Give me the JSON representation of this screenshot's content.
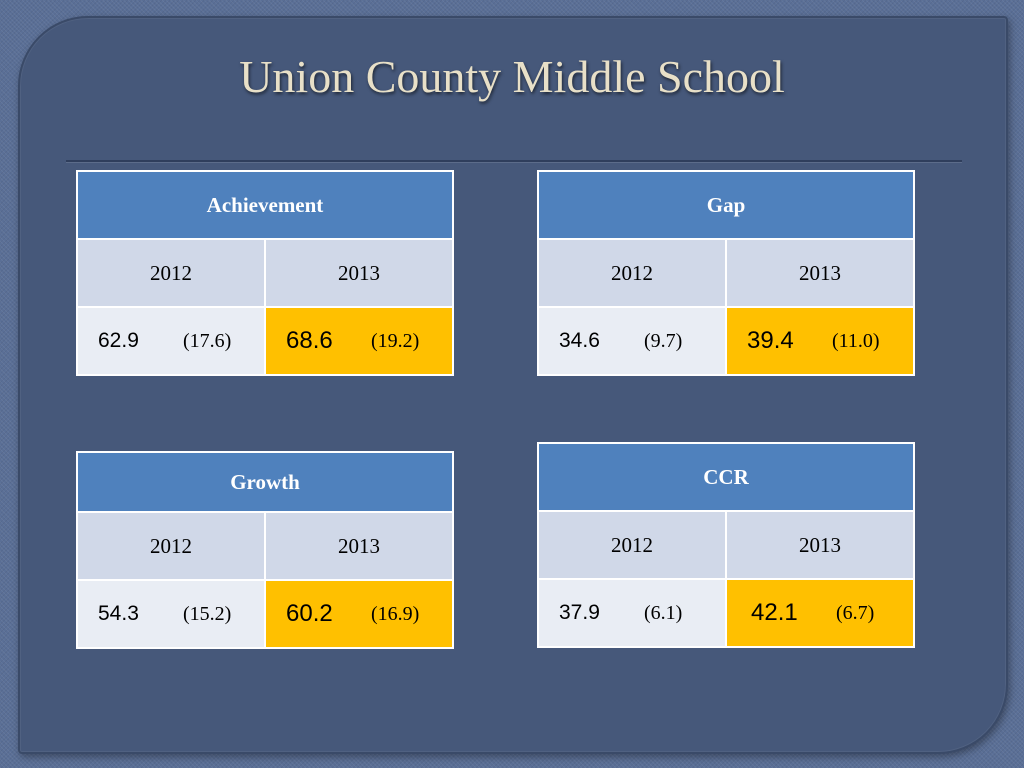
{
  "title": "Union County Middle School",
  "tables": {
    "achievement": {
      "header": "Achievement",
      "year1": "2012",
      "year2": "2013",
      "val1": "62.9",
      "par1": "(17.6)",
      "val2": "68.6",
      "par2": "(19.2)"
    },
    "gap": {
      "header": "Gap",
      "year1": "2012",
      "year2": "2013",
      "val1": "34.6",
      "par1": "(9.7)",
      "val2": "39.4",
      "par2": "(11.0)"
    },
    "growth": {
      "header": "Growth",
      "year1": "2012",
      "year2": "2013",
      "val1": "54.3",
      "par1": "(15.2)",
      "val2": "60.2",
      "par2": "(16.9)"
    },
    "ccr": {
      "header": "CCR",
      "year1": "2012",
      "year2": "2013",
      "val1": "37.9",
      "par1": "(6.1)",
      "val2": "42.1",
      "par2": "(6.7)"
    }
  },
  "colors": {
    "header_blue": "#4f81bd",
    "year_row": "#d0d8e8",
    "highlight_gold": "#ffc000",
    "slide_bg": "#46587a"
  }
}
